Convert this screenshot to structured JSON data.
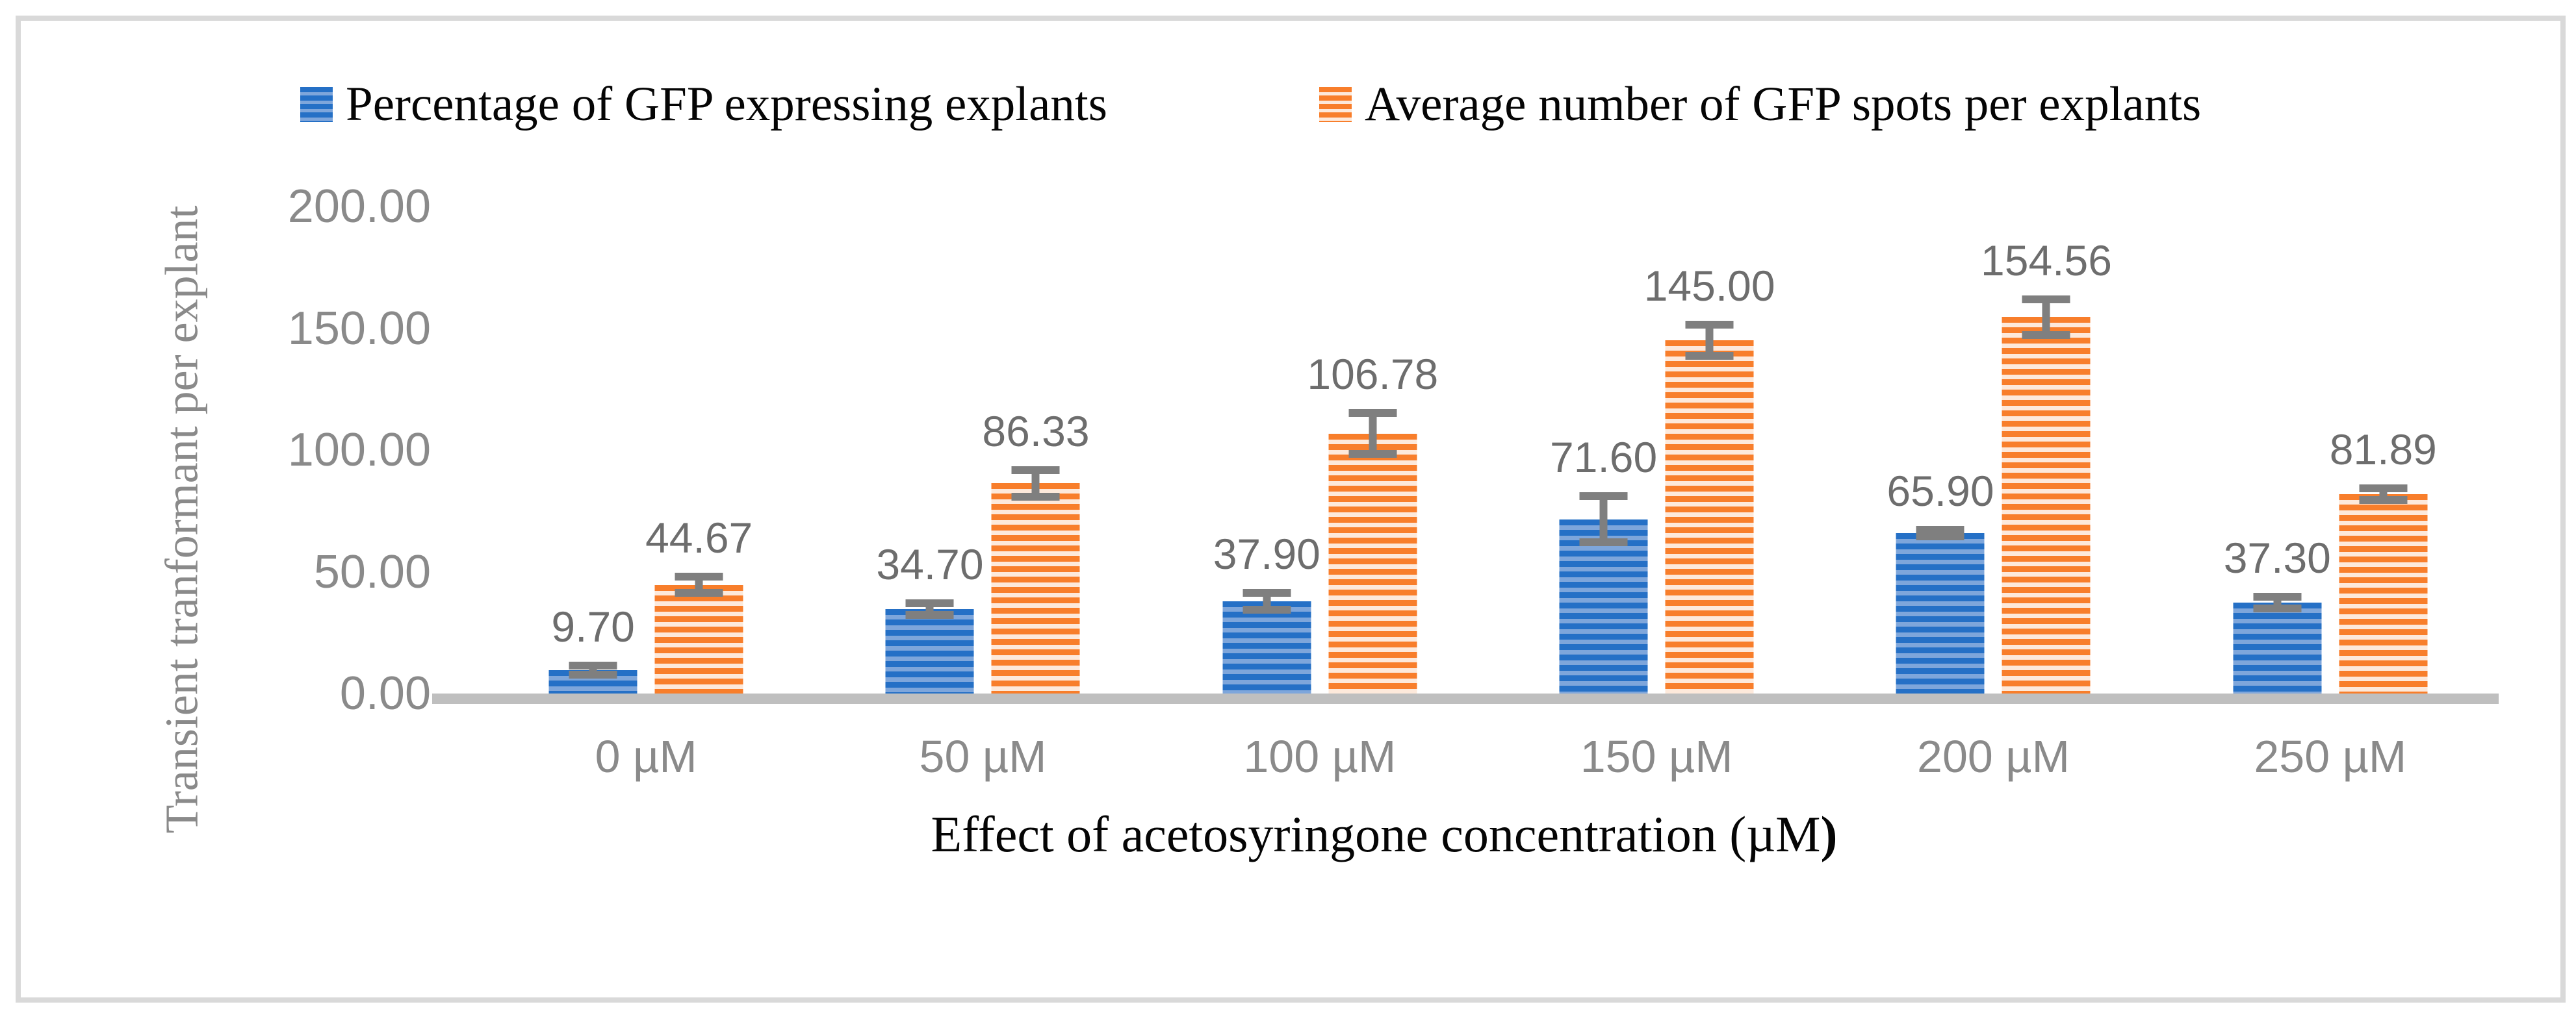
{
  "figure": {
    "border_color": "#d9d9d9",
    "background": "#ffffff",
    "axis_line_color": "#bfbfbf",
    "error_bar_color": "#7f7f7f"
  },
  "legend": {
    "items": [
      {
        "label": "Percentage of GFP expressing explants",
        "swatch": "blue-striped-swatch"
      },
      {
        "label": "Average number of GFP spots per explants",
        "swatch": "orange-striped-swatch"
      }
    ]
  },
  "chart_data": {
    "type": "bar",
    "title": "",
    "xlabel_main": "Effect of acetosyringone concentration (µM",
    "xlabel_suffix": ")",
    "ylabel": "Transient tranformant per explant",
    "categories": [
      "0 µM",
      "50 µM",
      "100 µM",
      "150 µM",
      "200 µM",
      "250 µM"
    ],
    "series": [
      {
        "name": "Percentage of GFP expressing explants",
        "color": "#2570c6",
        "color_light": "#7ea6db",
        "values": [
          9.7,
          34.7,
          37.9,
          71.6,
          65.9,
          37.3
        ],
        "labels": [
          "9.70",
          "34.70",
          "37.90",
          "71.60",
          "65.90",
          "37.30"
        ],
        "errors": [
          3.5,
          4,
          5,
          11,
          3,
          4
        ]
      },
      {
        "name": "Average number of GFP spots per explants",
        "color": "#f87e2b",
        "color_light": "#fde9db",
        "values": [
          44.67,
          86.33,
          106.78,
          145.0,
          154.56,
          81.89
        ],
        "labels": [
          "44.67",
          "86.33",
          "106.78",
          "145.00",
          "154.56",
          "81.89"
        ],
        "errors": [
          5,
          7,
          10,
          8,
          9,
          4
        ]
      }
    ],
    "ylim": [
      0,
      200
    ],
    "yticks": [
      "200.00",
      "150.00",
      "100.00",
      "50.00",
      "0.00"
    ],
    "grid": false,
    "legend_position": "top",
    "error_bars": true
  }
}
